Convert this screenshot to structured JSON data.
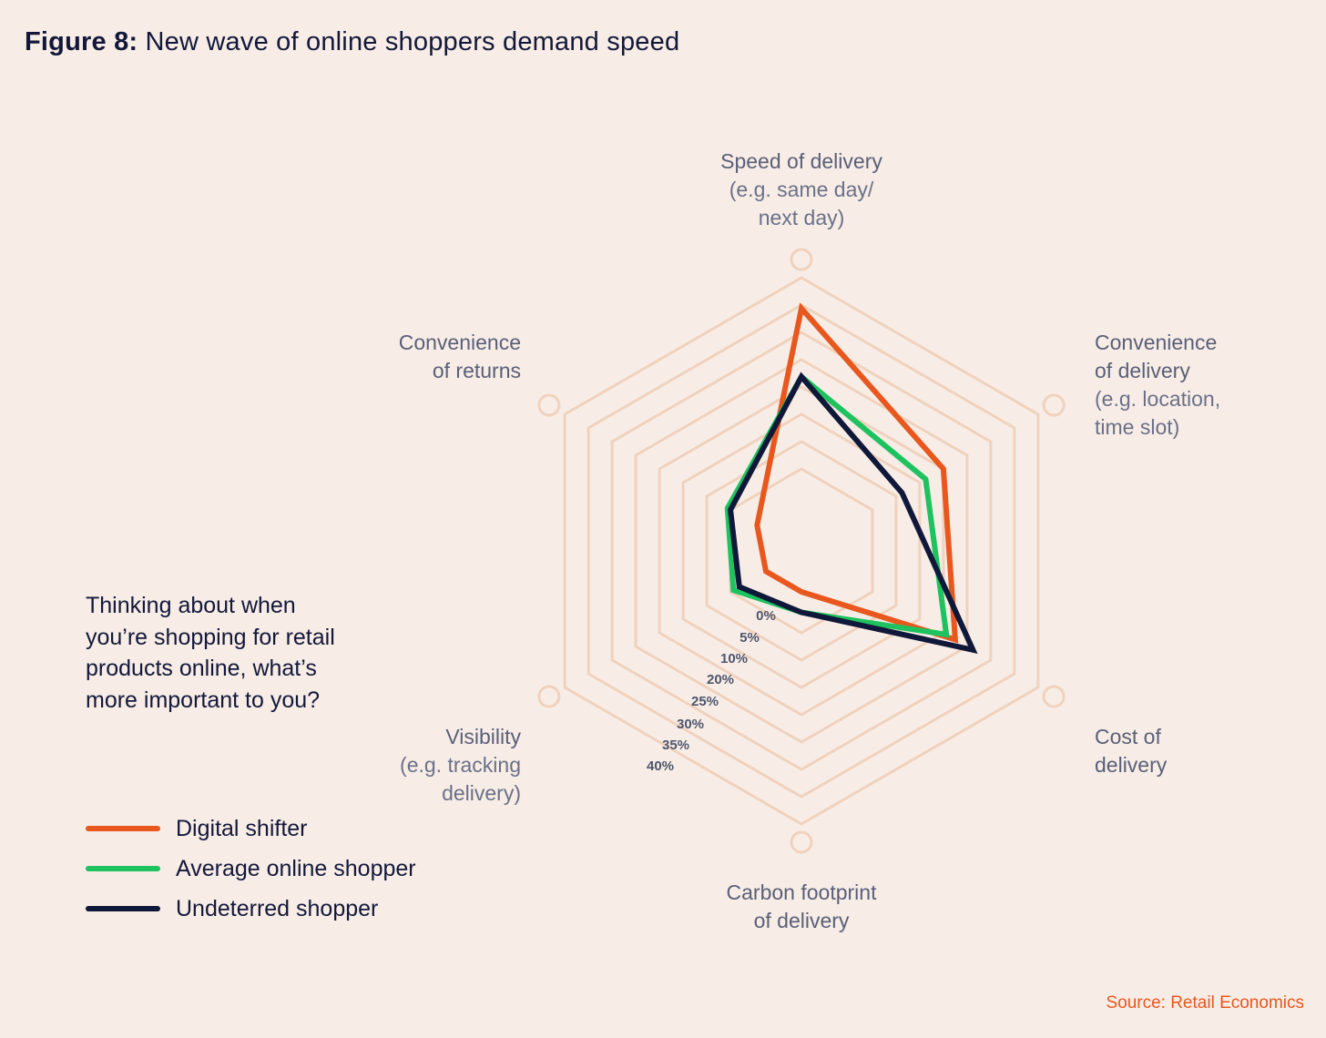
{
  "title": {
    "prefix": "Figure 8:",
    "text": "New wave of online shoppers demand speed"
  },
  "question": "Thinking about when you’re shopping for retail products online, what’s more important to you?",
  "source": "Source: Retail Economics",
  "chart_data": {
    "type": "radar",
    "axes": [
      {
        "label": "Speed of delivery",
        "sublabel": [
          "(e.g. same day/",
          "next day)"
        ]
      },
      {
        "label": "Convenience",
        "label2": "of delivery",
        "sublabel": [
          "(e.g. location,",
          "time slot)"
        ]
      },
      {
        "label": "Cost of",
        "label2": "delivery",
        "sublabel": []
      },
      {
        "label": "Carbon footprint",
        "label2": "of delivery",
        "sublabel": []
      },
      {
        "label": "Visibility",
        "sublabel": [
          "(e.g. tracking",
          "delivery)"
        ]
      },
      {
        "label": "Convenience",
        "label2": "of returns",
        "sublabel": []
      }
    ],
    "ticks": [
      "0%",
      "5%",
      "10%",
      "20%",
      "25%",
      "30%",
      "35%",
      "40%"
    ],
    "rings": 8,
    "series": [
      {
        "name": "Digital shifter",
        "color": "#e8571e",
        "values": [
          35.5,
          24,
          26,
          6,
          6,
          7.5
        ]
      },
      {
        "name": "Average online shopper",
        "color": "#1ec25f",
        "values": [
          25.5,
          21,
          24.5,
          9,
          11.5,
          12.5
        ]
      },
      {
        "name": "Undeterred shopper",
        "color": "#10183a",
        "values": [
          25.5,
          17,
          29,
          9,
          10.5,
          12
        ]
      }
    ],
    "legend_position": "bottom-left"
  }
}
